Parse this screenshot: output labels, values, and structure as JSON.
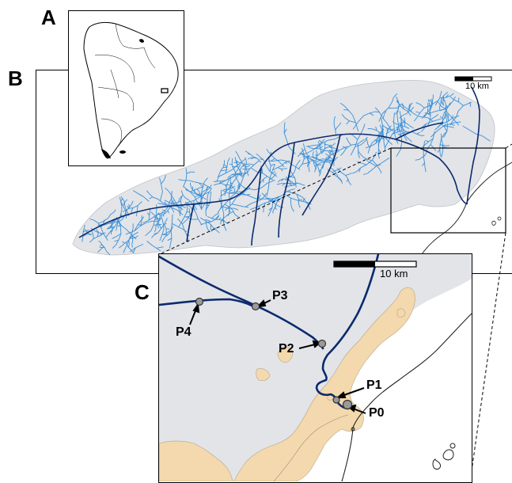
{
  "panels": {
    "a": {
      "letter": "A"
    },
    "b": {
      "letter": "B",
      "scale_label": "10 km"
    },
    "c": {
      "letter": "C",
      "scale_label": "10 km"
    }
  },
  "points": [
    {
      "id": "p0",
      "label": "P0"
    },
    {
      "id": "p1",
      "label": "P1"
    },
    {
      "id": "p2",
      "label": "P2"
    },
    {
      "id": "p3",
      "label": "P3"
    },
    {
      "id": "p4",
      "label": "P4"
    }
  ],
  "colors": {
    "river_network": "#3a8fd6",
    "main_river": "#0b2a6e",
    "basin_fill": "#e2e4e8",
    "urban_fill": "#f3d9ad",
    "point_fill": "#9a9a9a"
  }
}
